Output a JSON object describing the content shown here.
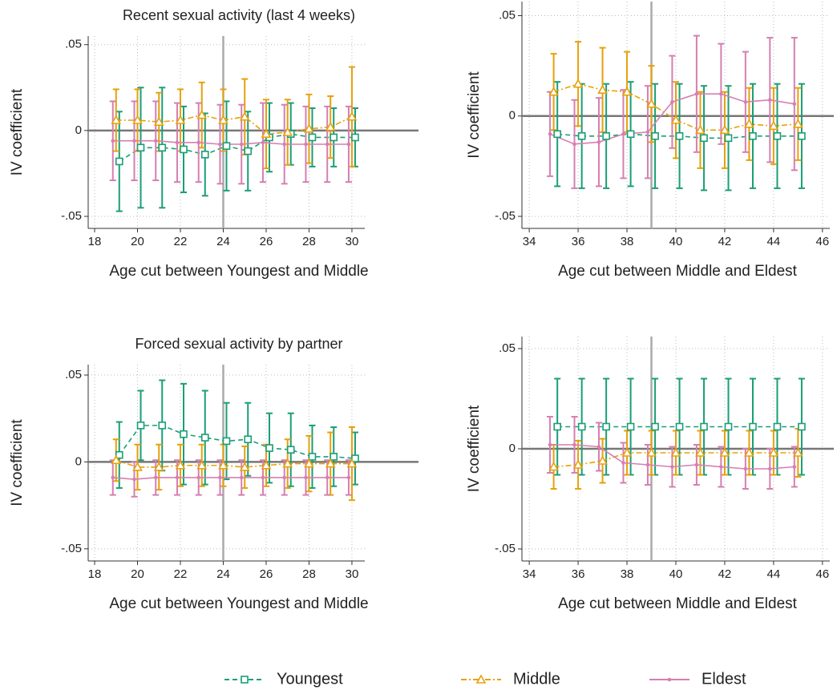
{
  "chart_data": [
    {
      "type": "errorbar",
      "title": "Recent sexual activity (last 4 weeks)",
      "xlabel": "Age cut between Youngest and Middle",
      "ylabel": "IV coefficient",
      "x": [
        19,
        20,
        21,
        22,
        23,
        24,
        25,
        26,
        27,
        28,
        29,
        30
      ],
      "xlim": [
        17.7,
        30.6
      ],
      "xticks": [
        18,
        20,
        22,
        24,
        26,
        28,
        30
      ],
      "ylim": [
        -0.057,
        0.055
      ],
      "yticks": [
        {
          "value": -0.05,
          "label": "-.05"
        },
        0,
        {
          "value": 0.05,
          "label": ".05"
        }
      ],
      "grid": true,
      "vline": 24,
      "hline": 0,
      "series": [
        {
          "name": "Youngest",
          "color": "#1a9e77",
          "marker": "square",
          "values": [
            -0.018,
            -0.01,
            -0.01,
            -0.011,
            -0.014,
            -0.009,
            -0.012,
            -0.004,
            -0.002,
            -0.004,
            -0.004,
            -0.004
          ],
          "errors": [
            0.029,
            0.035,
            0.035,
            0.025,
            0.024,
            0.026,
            0.023,
            0.02,
            0.018,
            0.017,
            0.017,
            0.017
          ]
        },
        {
          "name": "Middle",
          "color": "#e6a10a",
          "marker": "triangle",
          "values": [
            0.006,
            0.006,
            0.005,
            0.006,
            0.009,
            0.006,
            0.008,
            -0.002,
            -0.001,
            0.001,
            0.002,
            0.008
          ],
          "errors": [
            0.018,
            0.018,
            0.017,
            0.018,
            0.019,
            0.018,
            0.022,
            0.02,
            0.019,
            0.02,
            0.018,
            0.029
          ]
        },
        {
          "name": "Eldest",
          "color": "#d67fb1",
          "marker": "dot",
          "values": [
            -0.006,
            -0.006,
            -0.006,
            -0.007,
            -0.007,
            -0.008,
            -0.008,
            -0.007,
            -0.008,
            -0.008,
            -0.008,
            -0.008
          ],
          "errors": [
            0.023,
            0.023,
            0.023,
            0.023,
            0.023,
            0.023,
            0.023,
            0.023,
            0.023,
            0.022,
            0.022,
            0.022
          ]
        }
      ]
    },
    {
      "type": "errorbar",
      "xlabel": "Age cut between Middle and Eldest",
      "ylabel": "IV coefficient",
      "x": [
        35,
        36,
        37,
        38,
        39,
        40,
        41,
        42,
        43,
        44,
        45
      ],
      "xlim": [
        33.7,
        46.3
      ],
      "xticks": [
        34,
        36,
        38,
        40,
        42,
        44,
        46
      ],
      "ylim": [
        -0.056,
        0.057
      ],
      "yticks": [
        {
          "value": -0.05,
          "label": "-.05"
        },
        0,
        {
          "value": 0.05,
          "label": ".05"
        }
      ],
      "grid": true,
      "vline": 39,
      "hline": 0,
      "series": [
        {
          "color": "#1a9e77",
          "marker": "square",
          "values": [
            -0.009,
            -0.01,
            -0.01,
            -0.009,
            -0.01,
            -0.01,
            -0.011,
            -0.011,
            -0.01,
            -0.01,
            -0.01
          ],
          "errors": [
            0.026,
            0.026,
            0.026,
            0.026,
            0.026,
            0.026,
            0.026,
            0.026,
            0.026,
            0.026,
            0.026
          ]
        },
        {
          "color": "#e6a10a",
          "marker": "triangle",
          "values": [
            0.012,
            0.016,
            0.013,
            0.012,
            0.006,
            -0.002,
            -0.007,
            -0.007,
            -0.004,
            -0.005,
            -0.004
          ],
          "errors": [
            0.019,
            0.021,
            0.021,
            0.02,
            0.019,
            0.019,
            0.019,
            0.019,
            0.018,
            0.019,
            0.018
          ]
        },
        {
          "color": "#d67fb1",
          "marker": "dot",
          "values": [
            -0.009,
            -0.014,
            -0.013,
            -0.009,
            -0.008,
            0.007,
            0.011,
            0.011,
            0.007,
            0.008,
            0.006
          ],
          "errors": [
            0.021,
            0.022,
            0.022,
            0.022,
            0.023,
            0.023,
            0.029,
            0.025,
            0.025,
            0.031,
            0.033
          ]
        }
      ]
    },
    {
      "type": "errorbar",
      "title": "Forced sexual activity by partner",
      "xlabel": "Age cut between Youngest and Middle",
      "ylabel": "IV coefficient",
      "x": [
        19,
        20,
        21,
        22,
        23,
        24,
        25,
        26,
        27,
        28,
        29,
        30
      ],
      "xlim": [
        17.7,
        30.6
      ],
      "xticks": [
        18,
        20,
        22,
        24,
        26,
        28,
        30
      ],
      "ylim": [
        -0.057,
        0.056
      ],
      "yticks": [
        {
          "value": -0.05,
          "label": "-.05"
        },
        0,
        {
          "value": 0.05,
          "label": ".05"
        }
      ],
      "grid": true,
      "vline": 24,
      "hline": 0,
      "series": [
        {
          "color": "#1a9e77",
          "marker": "square",
          "values": [
            0.004,
            0.021,
            0.021,
            0.016,
            0.014,
            0.012,
            0.013,
            0.008,
            0.007,
            0.003,
            0.003,
            0.002
          ],
          "errors": [
            0.019,
            0.02,
            0.026,
            0.029,
            0.027,
            0.022,
            0.021,
            0.02,
            0.021,
            0.018,
            0.017,
            0.015
          ]
        },
        {
          "color": "#e6a10a",
          "marker": "triangle",
          "values": [
            0.001,
            -0.003,
            -0.003,
            -0.002,
            -0.002,
            -0.002,
            -0.003,
            -0.002,
            -0.001,
            -0.001,
            -0.001,
            -0.001
          ],
          "errors": [
            0.012,
            0.013,
            0.013,
            0.012,
            0.012,
            0.012,
            0.012,
            0.012,
            0.014,
            0.016,
            0.018,
            0.021
          ]
        },
        {
          "color": "#d67fb1",
          "marker": "dot",
          "values": [
            -0.009,
            -0.01,
            -0.009,
            -0.009,
            -0.009,
            -0.009,
            -0.009,
            -0.009,
            -0.009,
            -0.009,
            -0.009,
            -0.009
          ],
          "errors": [
            0.01,
            0.01,
            0.01,
            0.01,
            0.01,
            0.01,
            0.01,
            0.01,
            0.01,
            0.01,
            0.01,
            0.01
          ]
        }
      ]
    },
    {
      "type": "errorbar",
      "xlabel": "Age cut between Middle and Eldest",
      "ylabel": "IV coefficient",
      "x": [
        35,
        36,
        37,
        38,
        39,
        40,
        41,
        42,
        43,
        44,
        45
      ],
      "xlim": [
        33.7,
        46.3
      ],
      "xticks": [
        34,
        36,
        38,
        40,
        42,
        44,
        46
      ],
      "ylim": [
        -0.056,
        0.056
      ],
      "yticks": [
        {
          "value": -0.05,
          "label": "-.05"
        },
        0,
        {
          "value": 0.05,
          "label": ".05"
        }
      ],
      "grid": true,
      "vline": 39,
      "hline": 0,
      "series": [
        {
          "color": "#1a9e77",
          "marker": "square",
          "values": [
            0.011,
            0.011,
            0.011,
            0.011,
            0.011,
            0.011,
            0.011,
            0.011,
            0.011,
            0.011,
            0.011
          ],
          "errors": [
            0.024,
            0.024,
            0.024,
            0.024,
            0.024,
            0.024,
            0.024,
            0.024,
            0.024,
            0.024,
            0.024
          ]
        },
        {
          "color": "#e6a10a",
          "marker": "triangle",
          "values": [
            -0.009,
            -0.008,
            -0.006,
            -0.002,
            -0.002,
            -0.002,
            -0.002,
            -0.002,
            -0.002,
            -0.002,
            -0.002
          ],
          "errors": [
            0.011,
            0.012,
            0.011,
            0.011,
            0.011,
            0.011,
            0.011,
            0.011,
            0.011,
            0.011,
            0.012
          ]
        },
        {
          "color": "#d67fb1",
          "marker": "dot",
          "values": [
            0.002,
            0.002,
            0.001,
            -0.007,
            -0.008,
            -0.009,
            -0.008,
            -0.009,
            -0.01,
            -0.01,
            -0.009
          ],
          "errors": [
            0.014,
            0.014,
            0.012,
            0.01,
            0.01,
            0.01,
            0.01,
            0.01,
            0.01,
            0.01,
            0.01
          ]
        }
      ]
    }
  ]
}
